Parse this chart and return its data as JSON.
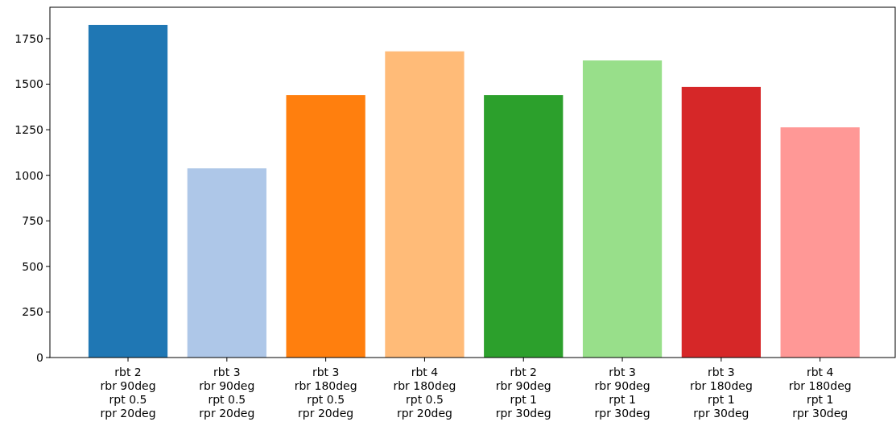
{
  "chart_data": {
    "type": "bar",
    "categories": [
      "rbt 2\nrbr 90deg\nrpt 0.5\nrpr 20deg",
      "rbt 3\nrbr 90deg\nrpt 0.5\nrpr 20deg",
      "rbt 3\nrbr 180deg\nrpt 0.5\nrpr 20deg",
      "rbt 4\nrbr 180deg\nrpt 0.5\nrpr 20deg",
      "rbt 2\nrbr 90deg\nrpt 1\nrpr 30deg",
      "rbt 3\nrbr 90deg\nrpt 1\nrpr 30deg",
      "rbt 3\nrbr 180deg\nrpt 1\nrpr 30deg",
      "rbt 4\nrbr 180deg\nrpt 1\nrpr 30deg"
    ],
    "values": [
      1825,
      1038,
      1440,
      1680,
      1440,
      1630,
      1485,
      1263
    ],
    "colors": [
      "#1f77b4",
      "#aec7e8",
      "#ff7f0e",
      "#ffbb78",
      "#2ca02c",
      "#98df8a",
      "#d62728",
      "#ff9896"
    ],
    "ylim": [
      0,
      1922
    ],
    "yticks": [
      0,
      250,
      500,
      750,
      1000,
      1250,
      1500,
      1750
    ]
  }
}
